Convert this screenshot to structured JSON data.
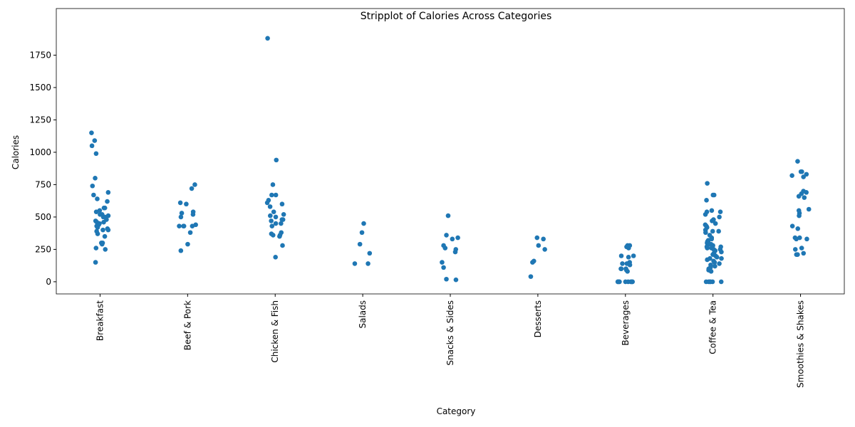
{
  "chart_data": {
    "type": "strip",
    "title": "Stripplot of Calories Across Categories",
    "x_label": "Category",
    "y_label": "Calories",
    "color": "#1f77b4",
    "categories": [
      "Breakfast",
      "Beef & Pork",
      "Chicken & Fish",
      "Salads",
      "Snacks & Sides",
      "Desserts",
      "Beverages",
      "Coffee & Tea",
      "Smoothies & Shakes"
    ],
    "values": [
      [
        1150,
        1090,
        1050,
        990,
        800,
        740,
        690,
        670,
        640,
        620,
        570,
        570,
        550,
        540,
        520,
        520,
        510,
        500,
        500,
        480,
        470,
        460,
        460,
        450,
        440,
        430,
        420,
        410,
        400,
        400,
        390,
        370,
        350,
        300,
        290,
        300,
        260,
        250,
        150
      ],
      [
        750,
        720,
        610,
        600,
        540,
        530,
        520,
        500,
        440,
        430,
        430,
        430,
        430,
        380,
        290,
        240
      ],
      [
        1880,
        940,
        750,
        670,
        670,
        630,
        610,
        600,
        580,
        540,
        520,
        510,
        500,
        480,
        480,
        470,
        450,
        450,
        430,
        380,
        370,
        360,
        360,
        350,
        280,
        190
      ],
      [
        450,
        380,
        290,
        220,
        140,
        140
      ],
      [
        510,
        360,
        340,
        330,
        280,
        260,
        250,
        230,
        150,
        110,
        20,
        15
      ],
      [
        340,
        330,
        280,
        250,
        160,
        150,
        40
      ],
      [
        280,
        280,
        270,
        260,
        200,
        190,
        200,
        150,
        140,
        140,
        130,
        100,
        100,
        100,
        90,
        80,
        0,
        0,
        0,
        0,
        0,
        0,
        0,
        0,
        0,
        0
      ],
      [
        760,
        670,
        670,
        630,
        550,
        540,
        540,
        520,
        500,
        480,
        470,
        450,
        440,
        430,
        420,
        400,
        390,
        390,
        380,
        360,
        340,
        330,
        320,
        310,
        300,
        300,
        290,
        280,
        280,
        270,
        270,
        260,
        260,
        250,
        250,
        240,
        230,
        220,
        210,
        200,
        190,
        180,
        180,
        170,
        160,
        150,
        140,
        130,
        120,
        110,
        100,
        90,
        80,
        0,
        0,
        0,
        0,
        0,
        0
      ],
      [
        930,
        850,
        850,
        830,
        820,
        810,
        700,
        690,
        680,
        660,
        650,
        560,
        550,
        530,
        510,
        430,
        410,
        340,
        340,
        330,
        330,
        260,
        250,
        220,
        210,
        210
      ]
    ],
    "ylim": [
      -94,
      2110
    ],
    "yticks": [
      0,
      250,
      500,
      750,
      1000,
      1250,
      1500,
      1750
    ]
  }
}
